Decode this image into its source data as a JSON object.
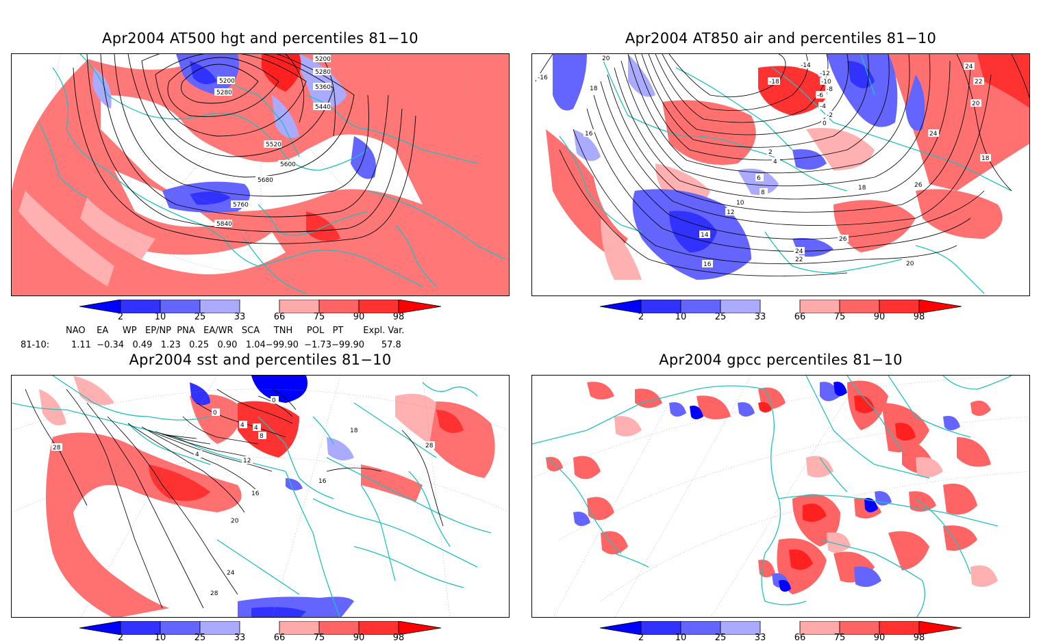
{
  "panels": [
    {
      "title": "Apr2004 AT500 hgt and percentiles 81−10",
      "contour_labels": [
        "5200",
        "5280",
        "5360",
        "5440",
        "5200",
        "5280",
        "5520",
        "5600",
        "5680",
        "5760",
        "5840"
      ]
    },
    {
      "title": "Apr2004 AT850 air and percentiles 81−10",
      "contour_labels": [
        "-16",
        "20",
        "18",
        "16",
        "-14",
        "-12",
        "-10",
        "-8",
        "-6",
        "-4",
        "-2",
        "0",
        "2",
        "4",
        "6",
        "8",
        "10",
        "12",
        "14",
        "16",
        "18",
        "20",
        "22",
        "24",
        "24",
        "26",
        "26",
        "18",
        "-18",
        "24",
        "22",
        "20"
      ]
    },
    {
      "title": "Apr2004 sst and percentiles 81−10",
      "contour_labels": [
        "28",
        "0",
        "0",
        "4",
        "4",
        "8",
        "4",
        "12",
        "16",
        "20",
        "24",
        "28",
        "16",
        "18",
        "28"
      ]
    },
    {
      "title": "Apr2004 gpcc percentiles 81−10",
      "contour_labels": []
    }
  ],
  "colorbar": {
    "labels": [
      "2",
      "10",
      "25",
      "33",
      "66",
      "75",
      "90",
      "98"
    ],
    "colors": {
      "blue_extreme": "#0000ff",
      "blue_dark": "#3232ff",
      "blue_mid": "#6464ff",
      "blue_light": "#aaaaff",
      "red_light": "#ffaaaa",
      "red_mid": "#ff6464",
      "red_dark": "#ff3232",
      "red_extreme": "#ff0000"
    }
  },
  "indices": {
    "header": "NAO    EA     WP   EP/NP  PNA   EA/WR   SCA     TNH     POL   PT       Expl. Var.",
    "row_label": "81-10:",
    "values": "1.11  −0.34   0.49   1.23   0.25   0.90   1.04−99.90  −1.73−99.90      57.8"
  },
  "colors": {
    "coast": "#20c0c0",
    "contour": "#000000",
    "red_fill": "#ff7070",
    "pink_fill": "#ffb0b0",
    "blue_fill": "#6464ff",
    "light_blue_fill": "#aaaaff"
  }
}
